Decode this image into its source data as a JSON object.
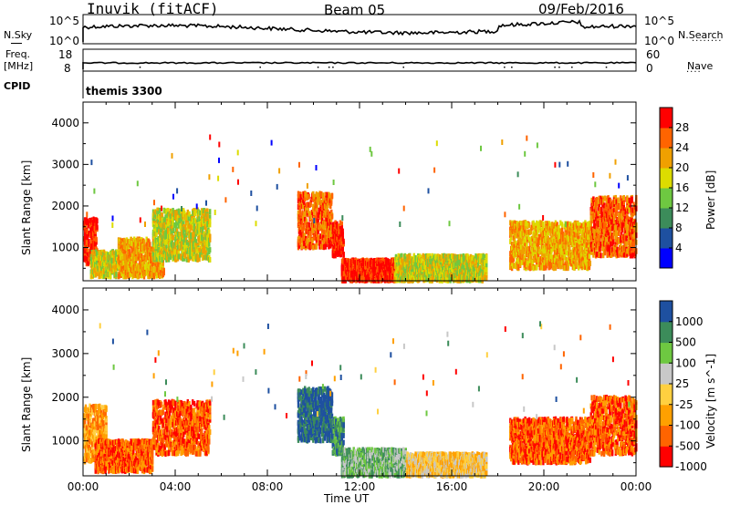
{
  "header": {
    "title_left": "Inuvik (fitACF)",
    "title_center": "Beam 05",
    "title_right": "09/Feb/2016"
  },
  "top_panels": {
    "nsky": {
      "label": "N.Sky",
      "ticks": [
        "10^5",
        "10^0"
      ]
    },
    "nsearch": {
      "label": "N.Search",
      "ticks": [
        "10^5",
        "10^0"
      ]
    },
    "freq": {
      "label_line1": "Freq.",
      "label_line2": "[MHz]",
      "ticks": [
        "18",
        "8"
      ]
    },
    "nave": {
      "label": "Nave",
      "ticks": [
        "60",
        "0"
      ]
    },
    "cpid": {
      "label": "CPID",
      "value": "themis 3300"
    }
  },
  "colors": {
    "power": [
      "#0000ff",
      "#1e50a0",
      "#3c8c5a",
      "#6ec841",
      "#dcdc00",
      "#f0a000",
      "#ff6400",
      "#ff0000"
    ],
    "velocity": [
      "#ff0000",
      "#ff6400",
      "#ffa000",
      "#ffd040",
      "#c8c8c8",
      "#6ec841",
      "#3c8c5a",
      "#1e50a0"
    ]
  },
  "chart_data": [
    {
      "type": "heatmap",
      "name": "power",
      "ylabel": "Slant Range [km]",
      "colorbar_label": "Power [dB]",
      "colorbar_ticks": [
        "28",
        "24",
        "20",
        "16",
        "12",
        "8",
        "4"
      ],
      "ylim": [
        200,
        4500
      ],
      "y_ticks": [
        "4000",
        "3000",
        "2000",
        "1000"
      ],
      "xlabel": "Time UT",
      "x_ticks": [
        "00:00",
        "04:00",
        "08:00",
        "12:00",
        "16:00",
        "20:00",
        "00:00"
      ],
      "xlim_hours": [
        0,
        24
      ],
      "regions": [
        {
          "t": [
            0.0,
            0.6
          ],
          "r": [
            600,
            1700
          ],
          "level": 7
        },
        {
          "t": [
            0.3,
            1.5
          ],
          "r": [
            300,
            900
          ],
          "level": 4
        },
        {
          "t": [
            1.5,
            3.5
          ],
          "r": [
            300,
            1200
          ],
          "level": 5
        },
        {
          "t": [
            3.0,
            5.5
          ],
          "r": [
            700,
            1900
          ],
          "level": 4
        },
        {
          "t": [
            9.3,
            10.8
          ],
          "r": [
            1000,
            2300
          ],
          "level": 6
        },
        {
          "t": [
            10.8,
            11.3
          ],
          "r": [
            800,
            1600
          ],
          "level": 7
        },
        {
          "t": [
            11.2,
            13.5
          ],
          "r": [
            200,
            700
          ],
          "level": 7
        },
        {
          "t": [
            13.5,
            17.5
          ],
          "r": [
            200,
            800
          ],
          "level": 4
        },
        {
          "t": [
            18.5,
            22.0
          ],
          "r": [
            500,
            1600
          ],
          "level": 5
        },
        {
          "t": [
            22.0,
            24.0
          ],
          "r": [
            800,
            2200
          ],
          "level": 6
        }
      ]
    },
    {
      "type": "heatmap",
      "name": "velocity",
      "ylabel": "Slant Range [km]",
      "colorbar_label": "Velocity [m s^-1]",
      "colorbar_ticks": [
        "1000",
        "500",
        "100",
        "25",
        "-25",
        "-100",
        "-500",
        "-1000"
      ],
      "ylim": [
        200,
        4500
      ],
      "y_ticks": [
        "4000",
        "3000",
        "2000",
        "1000"
      ],
      "xlabel": "Time UT",
      "x_ticks": [
        "00:00",
        "04:00",
        "08:00",
        "12:00",
        "16:00",
        "20:00",
        "00:00"
      ],
      "xlim_hours": [
        0,
        24
      ],
      "regions": [
        {
          "t": [
            0.0,
            1.0
          ],
          "r": [
            500,
            1800
          ],
          "level": 2
        },
        {
          "t": [
            0.5,
            3.0
          ],
          "r": [
            300,
            1000
          ],
          "level": 1
        },
        {
          "t": [
            3.0,
            5.5
          ],
          "r": [
            700,
            1900
          ],
          "level": 1
        },
        {
          "t": [
            9.3,
            10.8
          ],
          "r": [
            1000,
            2200
          ],
          "level": 7
        },
        {
          "t": [
            10.8,
            11.3
          ],
          "r": [
            700,
            1500
          ],
          "level": 6
        },
        {
          "t": [
            11.2,
            14.0
          ],
          "r": [
            200,
            800
          ],
          "level": 5
        },
        {
          "t": [
            14.0,
            17.5
          ],
          "r": [
            200,
            700
          ],
          "level": 3
        },
        {
          "t": [
            18.5,
            22.0
          ],
          "r": [
            500,
            1500
          ],
          "level": 1
        },
        {
          "t": [
            22.0,
            24.0
          ],
          "r": [
            700,
            2000
          ],
          "level": 1
        }
      ]
    }
  ]
}
